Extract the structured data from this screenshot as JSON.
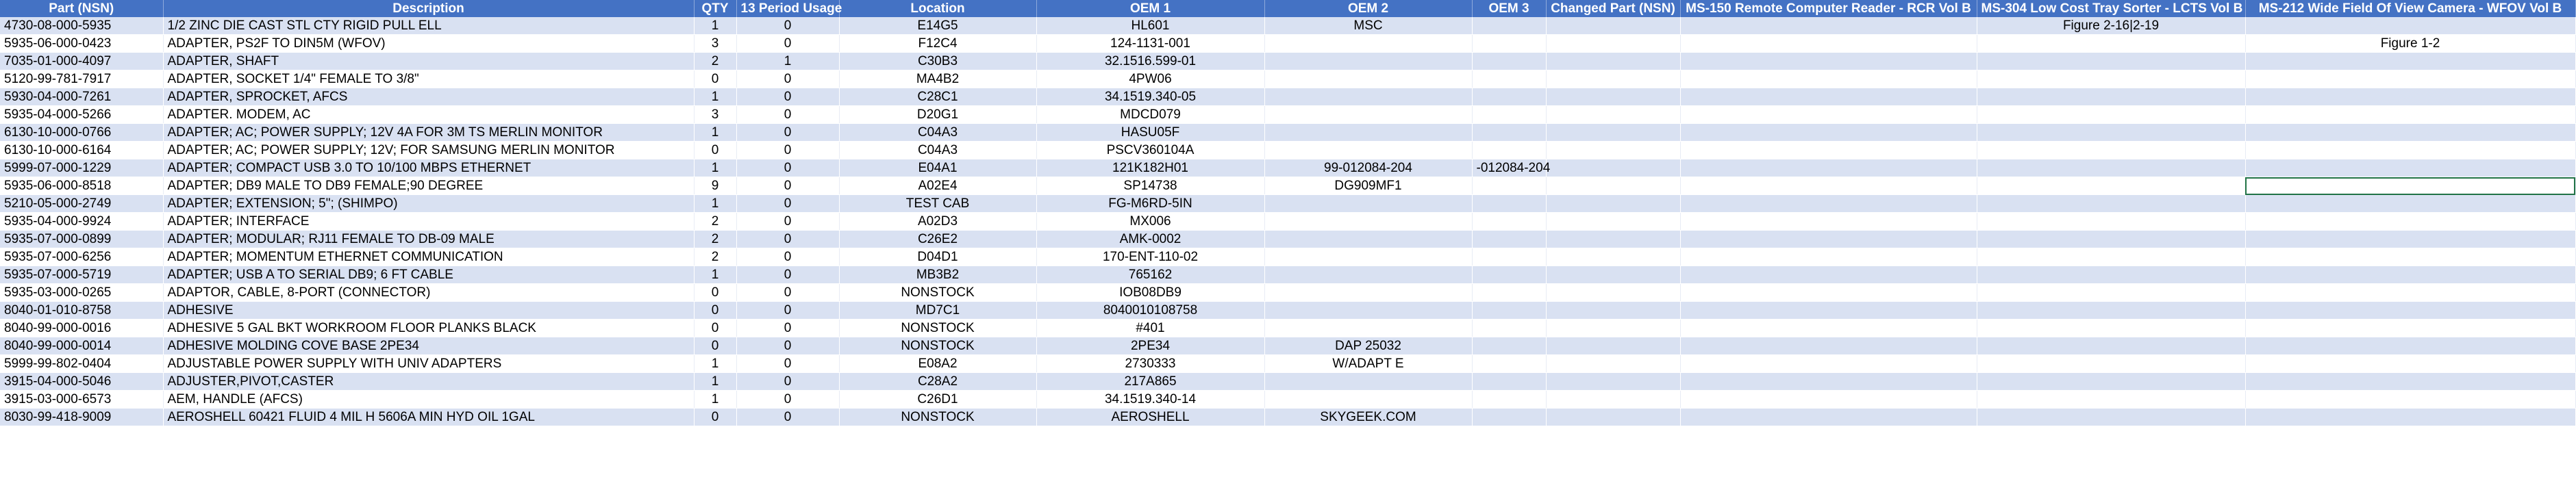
{
  "columns": [
    "Part (NSN)",
    "Description",
    "QTY",
    "13 Period Usage",
    "Location",
    "OEM 1",
    "OEM 2",
    "OEM 3",
    "Changed Part (NSN)",
    "MS-150 Remote Computer Reader - RCR Vol B",
    "MS-304 Low Cost Tray Sorter - LCTS Vol B",
    "MS-212 Wide Field Of View Camera - WFOV Vol B"
  ],
  "rows": [
    [
      "4730-08-000-5935",
      "1/2 ZINC DIE CAST STL CTY RIGID PULL ELL",
      "1",
      "0",
      "E14G5",
      "HL601",
      "MSC",
      "",
      "",
      "",
      "Figure 2-16|2-19",
      ""
    ],
    [
      "5935-06-000-0423",
      "ADAPTER, PS2F TO DIN5M    (WFOV)",
      "3",
      "0",
      "F12C4",
      "124-1131-001",
      "",
      "",
      "",
      "",
      "",
      "Figure 1-2"
    ],
    [
      "7035-01-000-4097",
      "ADAPTER, SHAFT",
      "2",
      "1",
      "C30B3",
      "32.1516.599-01",
      "",
      "",
      "",
      "",
      "",
      ""
    ],
    [
      "5120-99-781-7917",
      "ADAPTER, SOCKET 1/4\" FEMALE TO 3/8\"",
      "0",
      "0",
      "MA4B2",
      "4PW06",
      "",
      "",
      "",
      "",
      "",
      ""
    ],
    [
      "5930-04-000-7261",
      "ADAPTER, SPROCKET, AFCS",
      "1",
      "0",
      "C28C1",
      "34.1519.340-05",
      "",
      "",
      "",
      "",
      "",
      ""
    ],
    [
      "5935-04-000-5266",
      "ADAPTER. MODEM, AC",
      "3",
      "0",
      "D20G1",
      "MDCD079",
      "",
      "",
      "",
      "",
      "",
      ""
    ],
    [
      "6130-10-000-0766",
      "ADAPTER; AC; POWER SUPPLY; 12V 4A FOR 3M TS MERLIN MONITOR",
      "1",
      "0",
      "C04A3",
      "HASU05F",
      "",
      "",
      "",
      "",
      "",
      ""
    ],
    [
      "6130-10-000-6164",
      "ADAPTER; AC; POWER SUPPLY; 12V; FOR SAMSUNG MERLIN MONITOR",
      "0",
      "0",
      "C04A3",
      "PSCV360104A",
      "",
      "",
      "",
      "",
      "",
      ""
    ],
    [
      "5999-07-000-1229",
      "ADAPTER; COMPACT USB 3.0 TO 10/100 MBPS ETHERNET",
      "1",
      "0",
      "E04A1",
      "121K182H01",
      "99-012084-204",
      "-012084-204",
      "",
      "",
      "",
      ""
    ],
    [
      "5935-06-000-8518",
      "ADAPTER; DB9 MALE TO DB9 FEMALE;90 DEGREE",
      "9",
      "0",
      "A02E4",
      "SP14738",
      "DG909MF1",
      "",
      "",
      "",
      "",
      ""
    ],
    [
      "5210-05-000-2749",
      "ADAPTER; EXTENSION; 5\"; (SHIMPO)",
      "1",
      "0",
      "TEST CAB",
      "FG-M6RD-5IN",
      "",
      "",
      "",
      "",
      "",
      ""
    ],
    [
      "5935-04-000-9924",
      "ADAPTER; INTERFACE",
      "2",
      "0",
      "A02D3",
      "MX006",
      "",
      "",
      "",
      "",
      "",
      ""
    ],
    [
      "5935-07-000-0899",
      "ADAPTER; MODULAR; RJ11 FEMALE TO DB-09 MALE",
      "2",
      "0",
      "C26E2",
      "AMK-0002",
      "",
      "",
      "",
      "",
      "",
      ""
    ],
    [
      "5935-07-000-6256",
      "ADAPTER; MOMENTUM ETHERNET COMMUNICATION",
      "2",
      "0",
      "D04D1",
      "170-ENT-110-02",
      "",
      "",
      "",
      "",
      "",
      ""
    ],
    [
      "5935-07-000-5719",
      "ADAPTER; USB A TO SERIAL DB9; 6 FT CABLE",
      "1",
      "0",
      "MB3B2",
      "765162",
      "",
      "",
      "",
      "",
      "",
      ""
    ],
    [
      "5935-03-000-0265",
      "ADAPTOR, CABLE, 8-PORT (CONNECTOR)",
      "0",
      "0",
      "NONSTOCK",
      "IOB08DB9",
      "",
      "",
      "",
      "",
      "",
      ""
    ],
    [
      "8040-01-010-8758",
      "ADHESIVE",
      "0",
      "0",
      "MD7C1",
      "8040010108758",
      "",
      "",
      "",
      "",
      "",
      ""
    ],
    [
      "8040-99-000-0016",
      "ADHESIVE 5 GAL BKT WORKROOM FLOOR PLANKS BLACK",
      "0",
      "0",
      "NONSTOCK",
      "#401",
      "",
      "",
      "",
      "",
      "",
      ""
    ],
    [
      "8040-99-000-0014",
      "ADHESIVE MOLDING COVE BASE  2PE34",
      "0",
      "0",
      "NONSTOCK",
      "2PE34",
      "DAP 25032",
      "",
      "",
      "",
      "",
      ""
    ],
    [
      "5999-99-802-0404",
      "ADJUSTABLE POWER SUPPLY WITH UNIV ADAPTERS",
      "1",
      "0",
      "E08A2",
      "2730333",
      "W/ADAPT E",
      "",
      "",
      "",
      "",
      ""
    ],
    [
      "3915-04-000-5046",
      "ADJUSTER,PIVOT,CASTER",
      "1",
      "0",
      "C28A2",
      "217A865",
      "",
      "",
      "",
      "",
      "",
      ""
    ],
    [
      "3915-03-000-6573",
      "AEM, HANDLE (AFCS)",
      "1",
      "0",
      "C26D1",
      "34.1519.340-14",
      "",
      "",
      "",
      "",
      "",
      ""
    ],
    [
      "8030-99-418-9009",
      "AEROSHELL 60421 FLUID 4 MIL H 5606A MIN HYD OIL 1GAL",
      "0",
      "0",
      "NONSTOCK",
      "AEROSHELL",
      "SKYGEEK.COM",
      "",
      "",
      "",
      "",
      ""
    ]
  ],
  "colors": {
    "header_bg": "#4472c4",
    "band_bg": "#d9e1f2",
    "selection": "#217346"
  }
}
